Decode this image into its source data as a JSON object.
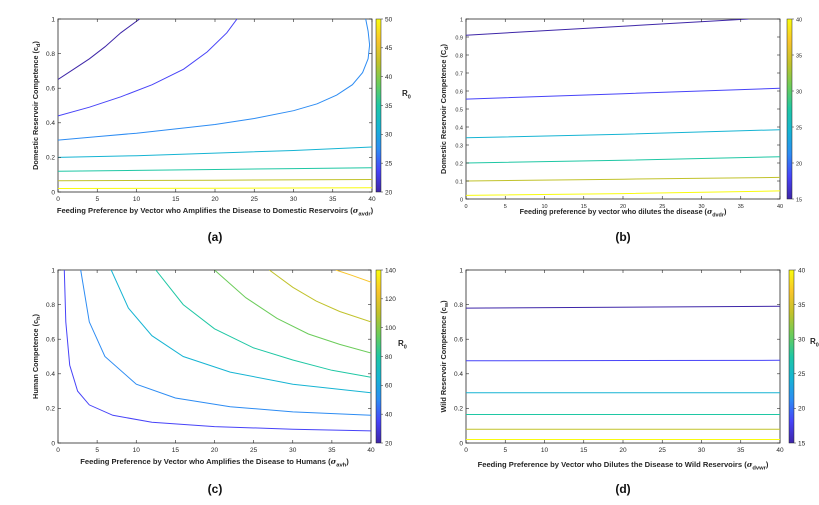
{
  "colormap": [
    "#3e26a8",
    "#4743f8",
    "#2d8cf3",
    "#16b4d3",
    "#1fc7a4",
    "#6bcc5a",
    "#c1c22b",
    "#f8c52b",
    "#f9fb0e"
  ],
  "chart_data": [
    {
      "type": "contour",
      "panel_label": "(a)",
      "xlabel_main": "Feeding Preference by Vector who Amplifies the Disease to Domestic Reservoirs (",
      "xlabel_sym": "σ",
      "xlabel_sub": "avdr",
      "xlabel_end": ")",
      "ylabel_main": "Domestic Reservoir Competence (c",
      "ylabel_sub": "d",
      "ylabel_end": ")",
      "xlim": [
        0,
        40
      ],
      "ylim": [
        0,
        1
      ],
      "xticks": [
        0,
        5,
        10,
        15,
        20,
        25,
        30,
        35,
        40
      ],
      "xtick_labels": [
        "0",
        "5",
        "10",
        "15",
        "20",
        "25",
        "30",
        "35",
        "40"
      ],
      "yticks": [
        0,
        0.2,
        0.4,
        0.6,
        0.8,
        1
      ],
      "ytick_labels": [
        "0",
        "0.2",
        "0.4",
        "0.6",
        "0.8",
        "1"
      ],
      "colorbar": {
        "min": 20,
        "max": 50,
        "ticks": [
          20,
          25,
          30,
          35,
          40,
          45,
          50
        ],
        "tick_labels": [
          "20",
          "25",
          "30",
          "35",
          "40",
          "45",
          "50"
        ],
        "label_main": "R",
        "label_sub": "0"
      },
      "contours": [
        {
          "level": 21,
          "points": [
            [
              0,
              0.65
            ],
            [
              2,
              0.71
            ],
            [
              4,
              0.77
            ],
            [
              6,
              0.84
            ],
            [
              8,
              0.92
            ],
            [
              10.4,
              1.0
            ]
          ]
        },
        {
          "level": 24,
          "points": [
            [
              0,
              0.44
            ],
            [
              4,
              0.49
            ],
            [
              8,
              0.55
            ],
            [
              12,
              0.62
            ],
            [
              16,
              0.71
            ],
            [
              19,
              0.81
            ],
            [
              21.5,
              0.92
            ],
            [
              22.8,
              1.0
            ]
          ]
        },
        {
          "level": 27,
          "points": [
            [
              0,
              0.3
            ],
            [
              5,
              0.32
            ],
            [
              10,
              0.34
            ],
            [
              15,
              0.365
            ],
            [
              20,
              0.39
            ],
            [
              25,
              0.425
            ],
            [
              30,
              0.47
            ],
            [
              33,
              0.51
            ],
            [
              35.5,
              0.56
            ],
            [
              37.5,
              0.62
            ],
            [
              38.8,
              0.69
            ],
            [
              39.5,
              0.77
            ],
            [
              39.7,
              0.85
            ],
            [
              39.5,
              0.93
            ],
            [
              39.2,
              1.0
            ]
          ]
        },
        {
          "level": 31,
          "points": [
            [
              0,
              0.2
            ],
            [
              10,
              0.21
            ],
            [
              20,
              0.225
            ],
            [
              30,
              0.24
            ],
            [
              40,
              0.26
            ]
          ]
        },
        {
          "level": 36,
          "points": [
            [
              0,
              0.12
            ],
            [
              10,
              0.125
            ],
            [
              20,
              0.13
            ],
            [
              30,
              0.135
            ],
            [
              40,
              0.14
            ]
          ]
        },
        {
          "level": 42,
          "points": [
            [
              0,
              0.065
            ],
            [
              20,
              0.068
            ],
            [
              40,
              0.072
            ]
          ]
        },
        {
          "level": 49,
          "points": [
            [
              0,
              0.02
            ],
            [
              20,
              0.022
            ],
            [
              40,
              0.024
            ]
          ]
        }
      ]
    },
    {
      "type": "contour",
      "panel_label": "(b)",
      "xlabel_main": "Feeding preference by vector who dilutes the disease (",
      "xlabel_sym": "σ",
      "xlabel_sub": "dvdr",
      "xlabel_end": ")",
      "ylabel_main": "Domestic Reservoir Competence (C",
      "ylabel_sub": "d",
      "ylabel_end": ")",
      "xlim": [
        0,
        40
      ],
      "ylim": [
        0,
        1
      ],
      "xticks": [
        0,
        5,
        10,
        15,
        20,
        25,
        30,
        35,
        40
      ],
      "xtick_labels": [
        "0",
        "5",
        "10",
        "15",
        "20",
        "25",
        "30",
        "35",
        "40"
      ],
      "yticks": [
        0,
        0.1,
        0.2,
        0.3,
        0.4,
        0.5,
        0.6,
        0.7,
        0.8,
        0.9,
        1
      ],
      "ytick_labels": [
        "0",
        "0.1",
        "0.2",
        "0.3",
        "0.4",
        "0.5",
        "0.6",
        "0.7",
        "0.8",
        "0.9",
        "1"
      ],
      "colorbar": {
        "min": 15,
        "max": 40,
        "ticks": [
          15,
          20,
          25,
          30,
          35,
          40
        ],
        "tick_labels": [
          "15",
          "20",
          "25",
          "30",
          "35",
          "40"
        ],
        "label_main": "",
        "label_sub": ""
      },
      "contours": [
        {
          "level": 16,
          "points": [
            [
              0,
              0.91
            ],
            [
              36,
              1.0
            ]
          ]
        },
        {
          "level": 19,
          "points": [
            [
              0,
              0.555
            ],
            [
              20,
              0.585
            ],
            [
              40,
              0.615
            ]
          ]
        },
        {
          "level": 24,
          "points": [
            [
              0,
              0.34
            ],
            [
              20,
              0.36
            ],
            [
              40,
              0.385
            ]
          ]
        },
        {
          "level": 28,
          "points": [
            [
              0,
              0.2
            ],
            [
              20,
              0.215
            ],
            [
              40,
              0.235
            ]
          ]
        },
        {
          "level": 35,
          "points": [
            [
              0,
              0.1
            ],
            [
              20,
              0.11
            ],
            [
              40,
              0.12
            ]
          ]
        },
        {
          "level": 39,
          "points": [
            [
              0,
              0.02
            ],
            [
              20,
              0.03
            ],
            [
              40,
              0.045
            ]
          ]
        }
      ]
    },
    {
      "type": "contour",
      "panel_label": "(c)",
      "xlabel_main": "Feeding Preference by Vector who Amplifies the Disease to Humans (",
      "xlabel_sym": "σ",
      "xlabel_sub": "avh",
      "xlabel_end": ")",
      "ylabel_main": "Human Competence (c",
      "ylabel_sub": "h",
      "ylabel_end": ")",
      "xlim": [
        0,
        40
      ],
      "ylim": [
        0,
        1
      ],
      "xticks": [
        0,
        5,
        10,
        15,
        20,
        25,
        30,
        35,
        40
      ],
      "xtick_labels": [
        "0",
        "5",
        "10",
        "15",
        "20",
        "25",
        "30",
        "35",
        "40"
      ],
      "yticks": [
        0,
        0.2,
        0.4,
        0.6,
        0.8,
        1
      ],
      "ytick_labels": [
        "0",
        "0.2",
        "0.4",
        "0.6",
        "0.8",
        "1"
      ],
      "colorbar": {
        "min": 20,
        "max": 140,
        "ticks": [
          20,
          40,
          60,
          80,
          100,
          120,
          140
        ],
        "tick_labels": [
          "20",
          "40",
          "60",
          "80",
          "100",
          "120",
          "140"
        ],
        "label_main": "R",
        "label_sub": "0"
      },
      "contours": [
        {
          "level": 30,
          "points": [
            [
              0.8,
              1.0
            ],
            [
              1,
              0.7
            ],
            [
              1.5,
              0.45
            ],
            [
              2.5,
              0.3
            ],
            [
              4,
              0.22
            ],
            [
              7,
              0.16
            ],
            [
              12,
              0.12
            ],
            [
              20,
              0.095
            ],
            [
              30,
              0.08
            ],
            [
              40,
              0.07
            ]
          ]
        },
        {
          "level": 50,
          "points": [
            [
              2.9,
              1.0
            ],
            [
              4,
              0.7
            ],
            [
              6,
              0.5
            ],
            [
              10,
              0.34
            ],
            [
              15,
              0.26
            ],
            [
              22,
              0.21
            ],
            [
              30,
              0.18
            ],
            [
              40,
              0.16
            ]
          ]
        },
        {
          "level": 70,
          "points": [
            [
              6.8,
              1.0
            ],
            [
              9,
              0.78
            ],
            [
              12,
              0.62
            ],
            [
              16,
              0.5
            ],
            [
              22,
              0.41
            ],
            [
              30,
              0.34
            ],
            [
              40,
              0.29
            ]
          ]
        },
        {
          "level": 85,
          "points": [
            [
              12.5,
              1.0
            ],
            [
              16,
              0.8
            ],
            [
              20,
              0.66
            ],
            [
              25,
              0.55
            ],
            [
              30,
              0.48
            ],
            [
              35,
              0.42
            ],
            [
              40,
              0.38
            ]
          ]
        },
        {
          "level": 100,
          "points": [
            [
              20,
              1.0
            ],
            [
              24,
              0.84
            ],
            [
              28,
              0.72
            ],
            [
              32,
              0.63
            ],
            [
              36,
              0.57
            ],
            [
              40,
              0.52
            ]
          ]
        },
        {
          "level": 115,
          "points": [
            [
              27,
              1.0
            ],
            [
              30,
              0.9
            ],
            [
              33,
              0.82
            ],
            [
              36,
              0.76
            ],
            [
              40,
              0.7
            ]
          ]
        },
        {
          "level": 132,
          "points": [
            [
              35.5,
              1.0
            ],
            [
              37.5,
              0.97
            ],
            [
              40,
              0.93
            ]
          ]
        }
      ]
    },
    {
      "type": "contour",
      "panel_label": "(d)",
      "xlabel_main": "Feeding Preference by Vector who Dilutes the Disease to Wild Reservoirs (",
      "xlabel_sym": "σ",
      "xlabel_sub": "dvwr",
      "xlabel_end": ")",
      "ylabel_main": "Wild Reservoir Competence (c",
      "ylabel_sub": "w",
      "ylabel_end": ")",
      "xlim": [
        0,
        40
      ],
      "ylim": [
        0,
        1
      ],
      "xticks": [
        0,
        5,
        10,
        15,
        20,
        25,
        30,
        35,
        40
      ],
      "xtick_labels": [
        "0",
        "5",
        "10",
        "15",
        "20",
        "25",
        "30",
        "35",
        "40"
      ],
      "yticks": [
        0,
        0.2,
        0.4,
        0.6,
        0.8,
        1
      ],
      "ytick_labels": [
        "0",
        "0.2",
        "0.4",
        "0.6",
        "0.8",
        "1"
      ],
      "colorbar": {
        "min": 15,
        "max": 40,
        "ticks": [
          15,
          20,
          25,
          30,
          35,
          40
        ],
        "tick_labels": [
          "15",
          "20",
          "25",
          "30",
          "35",
          "40"
        ],
        "label_main": "R",
        "label_sub": "0"
      },
      "contours": [
        {
          "level": 16,
          "points": [
            [
              0,
              0.78
            ],
            [
              40,
              0.79
            ]
          ]
        },
        {
          "level": 19,
          "points": [
            [
              0,
              0.475
            ],
            [
              40,
              0.478
            ]
          ]
        },
        {
          "level": 25,
          "points": [
            [
              0,
              0.29
            ],
            [
              40,
              0.29
            ]
          ]
        },
        {
          "level": 29,
          "points": [
            [
              0,
              0.165
            ],
            [
              40,
              0.165
            ]
          ]
        },
        {
          "level": 35,
          "points": [
            [
              0,
              0.08
            ],
            [
              40,
              0.08
            ]
          ]
        },
        {
          "level": 39,
          "points": [
            [
              0,
              0.02
            ],
            [
              40,
              0.02
            ]
          ]
        }
      ]
    }
  ]
}
